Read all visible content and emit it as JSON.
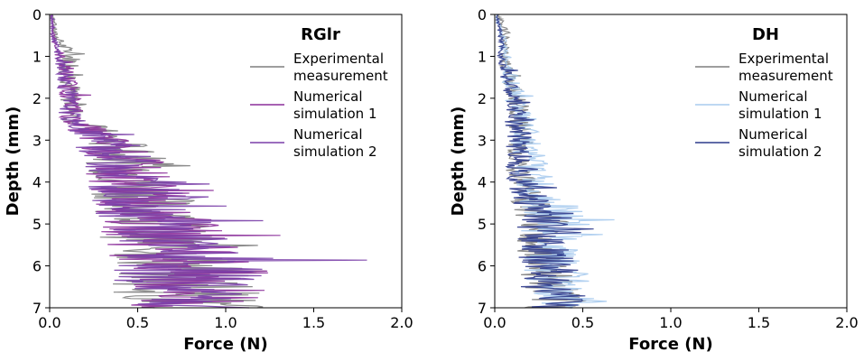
{
  "chart_data": [
    {
      "type": "line",
      "title": "RGlr",
      "xlabel": "Force (N)",
      "ylabel": "Depth (mm)",
      "xlim": [
        0,
        2.0
      ],
      "ylim": [
        7,
        0
      ],
      "y_inverted": true,
      "xticks": [
        "0.0",
        "0.5",
        "1.0",
        "1.5",
        "2.0"
      ],
      "yticks": [
        "0",
        "1",
        "2",
        "3",
        "4",
        "5",
        "6",
        "7"
      ],
      "legend_position": "top-right",
      "grid": false,
      "series": [
        {
          "name": "Experimental measurement",
          "color": "#7f7f7f",
          "y": [
            0,
            0.5,
            1.0,
            1.5,
            2.0,
            2.5,
            3.0,
            3.5,
            4.0,
            4.5,
            5.0,
            5.5,
            6.0,
            6.5,
            7.0
          ],
          "values": [
            0.02,
            0.03,
            0.12,
            0.12,
            0.12,
            0.14,
            0.35,
            0.45,
            0.5,
            0.55,
            0.6,
            0.65,
            0.75,
            0.8,
            0.8
          ]
        },
        {
          "name": "Numerical simulation 1",
          "color": "#8b2f9a",
          "y": [
            0,
            0.5,
            1.0,
            1.5,
            2.0,
            2.5,
            3.0,
            3.5,
            4.0,
            4.5,
            5.0,
            5.5,
            6.0,
            6.5,
            7.0
          ],
          "values": [
            0.01,
            0.02,
            0.06,
            0.1,
            0.12,
            0.13,
            0.3,
            0.42,
            0.48,
            0.55,
            0.62,
            0.7,
            0.8,
            0.82,
            0.85
          ]
        },
        {
          "name": "Numerical simulation 2",
          "color": "#7a3fa8",
          "y": [
            0,
            0.5,
            1.0,
            1.5,
            2.0,
            2.5,
            3.0,
            3.5,
            4.0,
            4.5,
            5.0,
            5.5,
            6.0,
            6.5,
            7.0
          ],
          "values": [
            0.01,
            0.02,
            0.05,
            0.09,
            0.1,
            0.12,
            0.28,
            0.4,
            0.47,
            0.54,
            0.6,
            0.68,
            0.78,
            0.8,
            0.84
          ]
        }
      ]
    },
    {
      "type": "line",
      "title": "DH",
      "xlabel": "Force (N)",
      "ylabel": "Depth (mm)",
      "xlim": [
        0,
        2.0
      ],
      "ylim": [
        7,
        0
      ],
      "y_inverted": true,
      "xticks": [
        "0.0",
        "0.5",
        "1.0",
        "1.5",
        "2.0"
      ],
      "yticks": [
        "0",
        "1",
        "2",
        "3",
        "4",
        "5",
        "6",
        "7"
      ],
      "legend_position": "top-right",
      "grid": false,
      "series": [
        {
          "name": "Experimental measurement",
          "color": "#7f7f7f",
          "y": [
            0,
            0.5,
            1.0,
            1.5,
            2.0,
            2.5,
            3.0,
            3.5,
            4.0,
            4.5,
            5.0,
            5.5,
            6.0,
            6.5,
            7.0
          ],
          "values": [
            0.02,
            0.06,
            0.05,
            0.08,
            0.12,
            0.14,
            0.15,
            0.13,
            0.15,
            0.2,
            0.3,
            0.25,
            0.3,
            0.32,
            0.35
          ]
        },
        {
          "name": "Numerical simulation 1",
          "color": "#a9cbee",
          "y": [
            0,
            0.5,
            1.0,
            1.5,
            2.0,
            2.5,
            3.0,
            3.5,
            4.0,
            4.5,
            5.0,
            5.5,
            6.0,
            6.5,
            7.0
          ],
          "values": [
            0.01,
            0.04,
            0.06,
            0.09,
            0.12,
            0.16,
            0.18,
            0.2,
            0.22,
            0.3,
            0.35,
            0.3,
            0.32,
            0.38,
            0.4
          ]
        },
        {
          "name": "Numerical simulation 2",
          "color": "#2d3a8c",
          "y": [
            0,
            0.5,
            1.0,
            1.5,
            2.0,
            2.5,
            3.0,
            3.5,
            4.0,
            4.5,
            5.0,
            5.5,
            6.0,
            6.5,
            7.0
          ],
          "values": [
            0.01,
            0.03,
            0.04,
            0.07,
            0.1,
            0.12,
            0.14,
            0.14,
            0.16,
            0.22,
            0.28,
            0.27,
            0.3,
            0.33,
            0.36
          ]
        }
      ]
    }
  ]
}
